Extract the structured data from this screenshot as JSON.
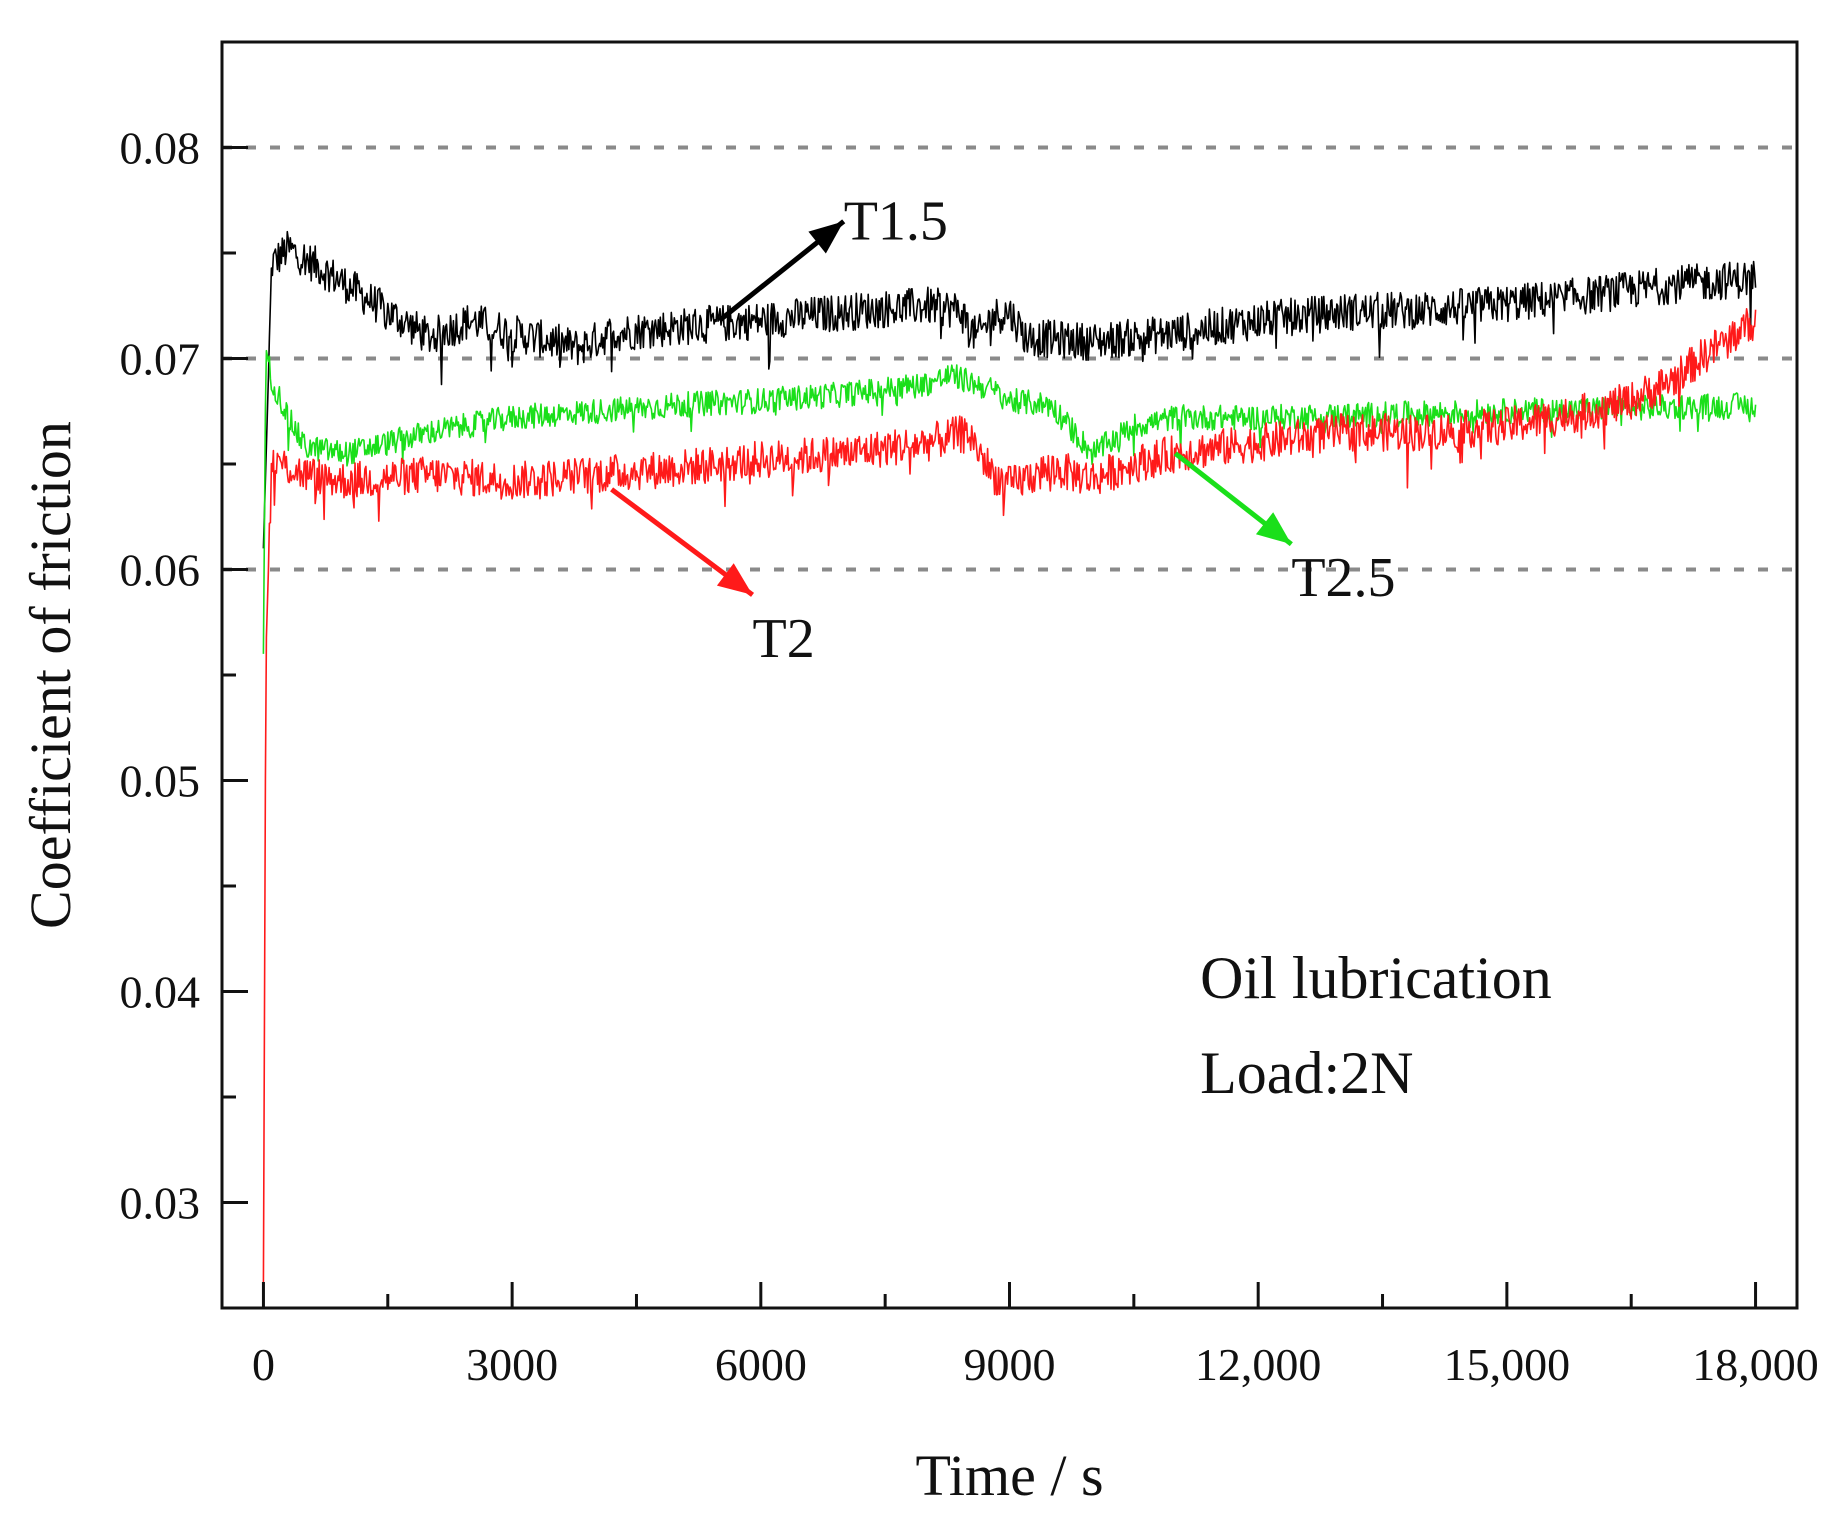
{
  "chart_data": {
    "type": "line",
    "title": "",
    "xlabel": "Time / s",
    "ylabel": "Coefficient of friction",
    "xlim": [
      -500,
      18500
    ],
    "ylim": [
      0.025,
      0.085
    ],
    "x_ticks": [
      0,
      3000,
      6000,
      9000,
      12000,
      15000,
      18000
    ],
    "x_tick_labels": [
      "0",
      "3000",
      "6000",
      "9000",
      "12,000",
      "15,000",
      "18,000"
    ],
    "y_ticks": [
      0.03,
      0.04,
      0.05,
      0.06,
      0.07,
      0.08
    ],
    "y_tick_labels": [
      "0.03",
      "0.04",
      "0.05",
      "0.06",
      "0.07",
      "0.08"
    ],
    "gridlines_y": [
      0.06,
      0.07,
      0.08
    ],
    "annotations": [
      "Oil lubrication",
      "Load:2N"
    ],
    "series": [
      {
        "name": "T1.5",
        "color": "#000000",
        "x": [
          0,
          100,
          300,
          600,
          1000,
          1500,
          2000,
          2500,
          3000,
          3500,
          3800,
          4200,
          5000,
          6000,
          7000,
          8000,
          8400,
          8600,
          8800,
          9000,
          9200,
          10000,
          11000,
          12000,
          13000,
          14000,
          15000,
          16000,
          17000,
          18000
        ],
        "values": [
          0.061,
          0.0745,
          0.0752,
          0.0745,
          0.0735,
          0.0722,
          0.071,
          0.0718,
          0.0712,
          0.0708,
          0.0705,
          0.0712,
          0.0715,
          0.0718,
          0.0722,
          0.0725,
          0.0723,
          0.071,
          0.072,
          0.0722,
          0.071,
          0.0708,
          0.0712,
          0.0718,
          0.0722,
          0.0723,
          0.0726,
          0.073,
          0.0735,
          0.0738
        ],
        "noise": 0.0009
      },
      {
        "name": "T2",
        "color": "#ff1a1a",
        "x": [
          0,
          30,
          100,
          500,
          1000,
          2000,
          3000,
          4000,
          5000,
          6000,
          7000,
          8000,
          8500,
          8800,
          9000,
          9500,
          10000,
          10500,
          11000,
          12000,
          13000,
          14000,
          15000,
          16000,
          16500,
          17000,
          17500,
          18000
        ],
        "values": [
          0.026,
          0.056,
          0.0652,
          0.0645,
          0.0642,
          0.0645,
          0.0642,
          0.0645,
          0.0648,
          0.0652,
          0.0655,
          0.066,
          0.0665,
          0.0645,
          0.064,
          0.0648,
          0.0643,
          0.065,
          0.0655,
          0.066,
          0.0665,
          0.0665,
          0.0668,
          0.0675,
          0.068,
          0.069,
          0.0705,
          0.0718
        ],
        "noise": 0.0009
      },
      {
        "name": "T2.5",
        "color": "#1adf1a",
        "x": [
          0,
          30,
          100,
          300,
          500,
          1000,
          2000,
          3000,
          4000,
          5000,
          6000,
          7000,
          8000,
          8300,
          8800,
          9000,
          9500,
          10000,
          10500,
          11000,
          12000,
          13000,
          14000,
          15000,
          16000,
          17000,
          18000
        ],
        "values": [
          0.056,
          0.0705,
          0.069,
          0.0672,
          0.0658,
          0.0655,
          0.0665,
          0.0672,
          0.0675,
          0.0678,
          0.068,
          0.0683,
          0.0688,
          0.0692,
          0.0685,
          0.068,
          0.0678,
          0.0655,
          0.0668,
          0.0672,
          0.0672,
          0.0673,
          0.0674,
          0.0675,
          0.0676,
          0.0677,
          0.0678
        ],
        "noise": 0.0006
      }
    ],
    "series_labels": [
      {
        "text": "T1.5",
        "series": "T1.5",
        "arrow_from": [
          5500,
          0.0718
        ],
        "arrow_to": [
          7000,
          0.0765
        ]
      },
      {
        "text": "T2",
        "series": "T2",
        "arrow_from": [
          4200,
          0.0638
        ],
        "arrow_to": [
          5900,
          0.0588
        ]
      },
      {
        "text": "T2.5",
        "series": "T2.5",
        "arrow_from": [
          11000,
          0.0655
        ],
        "arrow_to": [
          12400,
          0.0612
        ]
      }
    ]
  }
}
